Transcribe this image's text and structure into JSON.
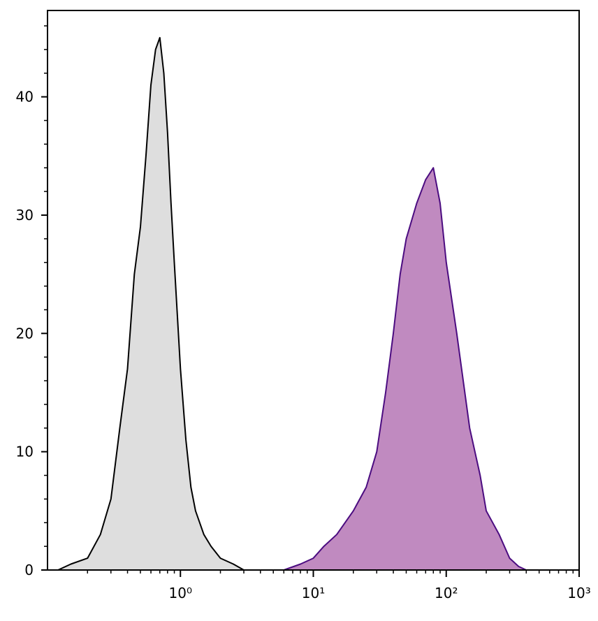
{
  "chart_data": {
    "type": "histogram-overlay",
    "xscale": "log",
    "xlim": [
      0.1,
      1000
    ],
    "ylim": [
      0,
      47.3
    ],
    "xticks": [
      {
        "value": 1,
        "label": "10⁰"
      },
      {
        "value": 10,
        "label": "10¹"
      },
      {
        "value": 100,
        "label": "10²"
      },
      {
        "value": 1000,
        "label": "10³"
      }
    ],
    "xminorticks": [
      0.2,
      0.3,
      0.4,
      0.5,
      0.6,
      0.7,
      0.8,
      0.9,
      2,
      3,
      4,
      5,
      6,
      7,
      8,
      9,
      20,
      30,
      40,
      50,
      60,
      70,
      80,
      90,
      200,
      300,
      400,
      500,
      600,
      700,
      800,
      900
    ],
    "yticks": [
      0,
      10,
      20,
      30,
      40
    ],
    "yminorticks": [
      2,
      4,
      6,
      8,
      12,
      14,
      16,
      18,
      22,
      24,
      26,
      28,
      32,
      34,
      36,
      38,
      42,
      44,
      46
    ],
    "series": [
      {
        "color": "#000000",
        "fill": "#dedede",
        "x": [
          0.12,
          0.15,
          0.2,
          0.25,
          0.3,
          0.35,
          0.4,
          0.45,
          0.5,
          0.55,
          0.6,
          0.65,
          0.7,
          0.75,
          0.8,
          0.85,
          0.9,
          1.0,
          1.1,
          1.2,
          1.3,
          1.5,
          1.7,
          2.0,
          2.5,
          3,
          4
        ],
        "values": [
          0,
          0.5,
          1,
          3,
          6,
          12,
          17,
          25,
          29,
          35,
          41,
          44,
          45,
          42,
          37,
          31,
          26,
          17,
          11,
          7,
          5,
          3,
          2,
          1,
          0.5,
          0,
          0
        ]
      },
      {
        "color": "#4b0c80",
        "fill": "#c08ac0",
        "x": [
          6,
          8,
          10,
          12,
          15,
          20,
          25,
          30,
          35,
          40,
          45,
          50,
          60,
          70,
          80,
          90,
          100,
          120,
          150,
          180,
          200,
          250,
          300,
          350,
          400
        ],
        "values": [
          0,
          0.5,
          1,
          2,
          3,
          5,
          7,
          10,
          15,
          20,
          25,
          28,
          31,
          33,
          34,
          31,
          26,
          20,
          12,
          8,
          5,
          3,
          1,
          0.3,
          0
        ]
      }
    ]
  }
}
